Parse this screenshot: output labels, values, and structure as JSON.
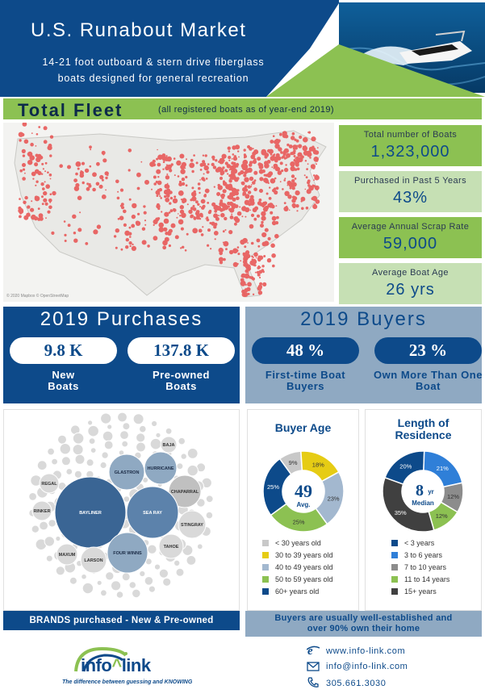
{
  "header": {
    "title": "U.S. Runabout Market",
    "subtitle_line1": "14-21 foot outboard & stern drive fiberglass",
    "subtitle_line2": "boats designed for general recreation"
  },
  "fleet": {
    "title": "Total Fleet",
    "note": "(all registered boats as of year-end 2019)",
    "map_credit": "© 2020 Mapbox © OpenStreetMap",
    "stats": [
      {
        "label": "Total number of Boats",
        "value": "1,323,000"
      },
      {
        "label": "Purchased in Past 5 Years",
        "value": "43%"
      },
      {
        "label": "Average Annual Scrap Rate",
        "value": "59,000"
      },
      {
        "label": "Average Boat Age",
        "value": "26 yrs"
      }
    ]
  },
  "purchases": {
    "title": "2019 Purchases",
    "new_value": "9.8 K",
    "new_label": "New Boats",
    "preowned_value": "137.8 K",
    "preowned_label": "Pre-owned Boats"
  },
  "buyers": {
    "title": "2019 Buyers",
    "first_value": "48 %",
    "first_label": "First-time Boat Buyers",
    "multi_value": "23 %",
    "multi_label": "Own More Than One Boat"
  },
  "brands": {
    "labels": [
      "BAJA",
      "GLASTRON",
      "HURRICANE",
      "REGAL",
      "CHAPARRAL",
      "RINKER",
      "BAYLINER",
      "SEA RAY",
      "STINGRAY",
      "MAXUM",
      "FOUR WINNS",
      "TAHOE",
      "LARSON"
    ],
    "footer": "BRANDS purchased - New & Pre-owned"
  },
  "buyer_age": {
    "title": "Buyer Age",
    "center_value": "49",
    "center_label": "Avg.",
    "slices": [
      {
        "label": "< 30 years old",
        "value": 9,
        "text": "9%",
        "color": "#c8c8c8"
      },
      {
        "label": "30 to 39 years old",
        "value": 18,
        "text": "18%",
        "color": "#e6cc14"
      },
      {
        "label": "40 to 49 years old",
        "value": 23,
        "text": "23%",
        "color": "#a3b8cf"
      },
      {
        "label": "50 to 59 years old",
        "value": 25,
        "text": "25%",
        "color": "#8cc152"
      },
      {
        "label": "60+ years old",
        "value": 25,
        "text": "25%",
        "color": "#0d4a8a"
      }
    ]
  },
  "residence": {
    "title_line1": "Length of",
    "title_line2": "Residence",
    "center_value": "8",
    "center_unit": "yr",
    "center_label": "Median",
    "slices": [
      {
        "label": "< 3 years",
        "value": 20,
        "text": "20%",
        "color": "#0d4a8a"
      },
      {
        "label": "3 to 6 years",
        "value": 21,
        "text": "21%",
        "color": "#2f7fd8"
      },
      {
        "label": "7 to 10 years",
        "value": 12,
        "text": "12%",
        "color": "#8c8c8c"
      },
      {
        "label": "11 to 14 years",
        "value": 12,
        "text": "12%",
        "color": "#8cc152"
      },
      {
        "label": "15+ years",
        "value": 35,
        "text": "35%",
        "color": "#404040"
      }
    ],
    "footer_line1": "Buyers are usually well-established and",
    "footer_line2": "over 90% own their home"
  },
  "footer": {
    "logo_text_info": "info",
    "logo_text_link": "link",
    "tagline": "The difference between guessing and KNOWING",
    "website": "www.info-link.com",
    "email": "info@info-link.com",
    "phone": "305.661.3030"
  }
}
